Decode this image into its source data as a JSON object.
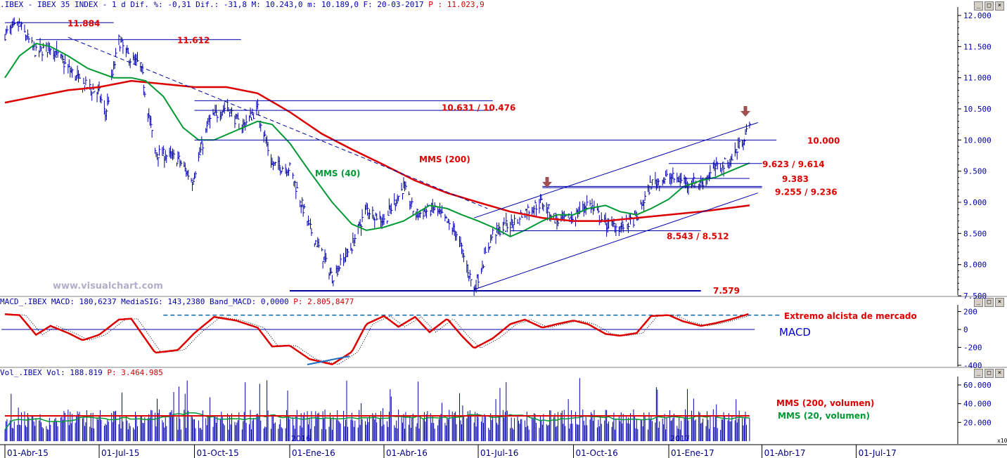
{
  "header": {
    "price_title": ".IBEX - IBEX 35 INDEX -   1 d Dif. %: -0,31 Dif.: -31,8 M: 10.243,0 m: 10.189,0 F: 20-03-2017",
    "price_p": "P : 11.023,9",
    "macd_title": "MACD_.IBEX MACD: 180,6237 MediaSIG: 143,2380 Band_MACD: 0,0000",
    "macd_p": "P: 2.805,8477",
    "vol_title": "Vol_.IBEX Vol: 188.819",
    "vol_p": "P: 3.464.985",
    "win_buttons": [
      "_",
      "□",
      "×"
    ]
  },
  "watermark": "www.visualchart.com",
  "x_axis": {
    "labels": [
      "01-Abr-15",
      "01-Jul-15",
      "01-Oct-15",
      "01-Ene-16",
      "01-Abr-16",
      "01-Jul-16",
      "01-Oct-16",
      "01-Ene-17",
      "01-Abr-17",
      "01-Jul-17"
    ],
    "year_labels": [
      "2016",
      "2017"
    ]
  },
  "chart_data": [
    {
      "type": "candlestick",
      "name": "IBEX 35 INDEX daily",
      "y_ticks": [
        "12.000",
        "11.500",
        "11.000",
        "10.500",
        "10.000",
        "9.500",
        "9.000",
        "8.500",
        "8.000",
        "7.500"
      ],
      "ylim": [
        7500,
        12050
      ],
      "approx_path": [
        [
          "01-Abr-15",
          11700
        ],
        [
          "15-Abr-15",
          11850
        ],
        [
          "01-May-15",
          11400
        ],
        [
          "15-May-15",
          11500
        ],
        [
          "01-Jun-15",
          11150
        ],
        [
          "15-Jun-15",
          10900
        ],
        [
          "01-Jul-15",
          10750
        ],
        [
          "07-Jul-15",
          10400
        ],
        [
          "20-Jul-15",
          11600
        ],
        [
          "31-Jul-15",
          11300
        ],
        [
          "10-Ago-15",
          11200
        ],
        [
          "24-Ago-15",
          9800
        ],
        [
          "15-Sep-15",
          9700
        ],
        [
          "29-Sep-15",
          9350
        ],
        [
          "15-Oct-15",
          10300
        ],
        [
          "01-Nov-15",
          10550
        ],
        [
          "15-Nov-15",
          10200
        ],
        [
          "01-Dic-15",
          10500
        ],
        [
          "15-Dic-15",
          9600
        ],
        [
          "01-Ene-16",
          9550
        ],
        [
          "20-Ene-16",
          8600
        ],
        [
          "11-Feb-16",
          7800
        ],
        [
          "01-Mar-16",
          8300
        ],
        [
          "15-Mar-16",
          8900
        ],
        [
          "01-Abr-16",
          8700
        ],
        [
          "20-Abr-16",
          9250
        ],
        [
          "01-May-16",
          8800
        ],
        [
          "20-May-16",
          8900
        ],
        [
          "10-Jun-16",
          8500
        ],
        [
          "27-Jun-16",
          7600
        ],
        [
          "15-Jul-16",
          8500
        ],
        [
          "01-Ago-16",
          8650
        ],
        [
          "15-Ago-16",
          8850
        ],
        [
          "01-Sep-16",
          9000
        ],
        [
          "15-Sep-16",
          8700
        ],
        [
          "01-Oct-16",
          8750
        ],
        [
          "15-Oct-16",
          9000
        ],
        [
          "01-Nov-16",
          8650
        ],
        [
          "15-Nov-16",
          8600
        ],
        [
          "01-Dic-16",
          8750
        ],
        [
          "15-Dic-16",
          9300
        ],
        [
          "01-Ene-17",
          9400
        ],
        [
          "15-Ene-17",
          9350
        ],
        [
          "01-Feb-17",
          9300
        ],
        [
          "15-Feb-17",
          9550
        ],
        [
          "01-Mar-17",
          9650
        ],
        [
          "10-Mar-17",
          9900
        ],
        [
          "20-Mar-17",
          10210
        ]
      ],
      "overlays": [
        {
          "name": "MMS (40)",
          "color": "#009933"
        },
        {
          "name": "MMS (200)",
          "color": "#dd0000"
        }
      ],
      "levels": [
        "11.884",
        "11.612",
        "10.631 / 10.476",
        "10.000",
        "9.623 / 9.614",
        "9.383",
        "9.255 / 9.236",
        "8.543 / 8.512",
        "7.579"
      ]
    },
    {
      "type": "line",
      "name": "MACD",
      "label": "MACD",
      "annotation": "Extremo alcista de mercado",
      "y_ticks": [
        "200",
        "0",
        "-200",
        "-400"
      ],
      "ylim": [
        -420,
        220
      ],
      "extreme_level": 160,
      "approx_path": [
        [
          "01-Abr-15",
          170
        ],
        [
          "15-Abr-15",
          160
        ],
        [
          "01-May-15",
          -60
        ],
        [
          "15-May-15",
          40
        ],
        [
          "01-Jun-15",
          -40
        ],
        [
          "15-Jun-15",
          -120
        ],
        [
          "01-Jul-15",
          -60
        ],
        [
          "20-Jul-15",
          110
        ],
        [
          "01-Ago-15",
          120
        ],
        [
          "24-Ago-15",
          -260
        ],
        [
          "15-Sep-15",
          -230
        ],
        [
          "01-Oct-15",
          -40
        ],
        [
          "20-Oct-15",
          140
        ],
        [
          "10-Nov-15",
          100
        ],
        [
          "01-Dic-15",
          20
        ],
        [
          "15-Dic-15",
          -190
        ],
        [
          "01-Ene-16",
          -180
        ],
        [
          "20-Ene-16",
          -330
        ],
        [
          "11-Feb-16",
          -390
        ],
        [
          "01-Mar-16",
          -250
        ],
        [
          "15-Mar-16",
          60
        ],
        [
          "01-Abr-16",
          150
        ],
        [
          "15-Abr-16",
          30
        ],
        [
          "01-May-16",
          140
        ],
        [
          "15-May-16",
          -30
        ],
        [
          "01-Jun-16",
          120
        ],
        [
          "15-Jun-16",
          -70
        ],
        [
          "27-Jun-16",
          -210
        ],
        [
          "15-Jul-16",
          -100
        ],
        [
          "01-Ago-16",
          60
        ],
        [
          "15-Ago-16",
          110
        ],
        [
          "01-Sep-16",
          20
        ],
        [
          "15-Sep-16",
          60
        ],
        [
          "01-Oct-16",
          100
        ],
        [
          "15-Oct-16",
          60
        ],
        [
          "01-Nov-16",
          -50
        ],
        [
          "15-Nov-16",
          -70
        ],
        [
          "01-Dic-16",
          -40
        ],
        [
          "15-Dic-16",
          150
        ],
        [
          "01-Ene-17",
          160
        ],
        [
          "15-Ene-17",
          90
        ],
        [
          "01-Feb-17",
          40
        ],
        [
          "15-Feb-17",
          70
        ],
        [
          "01-Mar-17",
          110
        ],
        [
          "20-Mar-17",
          175
        ]
      ]
    },
    {
      "type": "bar",
      "name": "Volumen",
      "y_ticks": [
        "60.000",
        "40.000",
        "20.000"
      ],
      "ylim": [
        0,
        65000
      ],
      "y_multiplier": "x10",
      "overlays": [
        {
          "name": "MMS (200, volumen)",
          "color": "#dd0000",
          "level": 27000
        },
        {
          "name": "MMS (20, volumen)",
          "color": "#009933"
        }
      ]
    }
  ],
  "colors": {
    "price": "#0000aa",
    "mms40": "#009933",
    "mms200": "#dd0000",
    "label_red": "#dd0000",
    "grid": "#000080",
    "arrow": "#a05050"
  }
}
